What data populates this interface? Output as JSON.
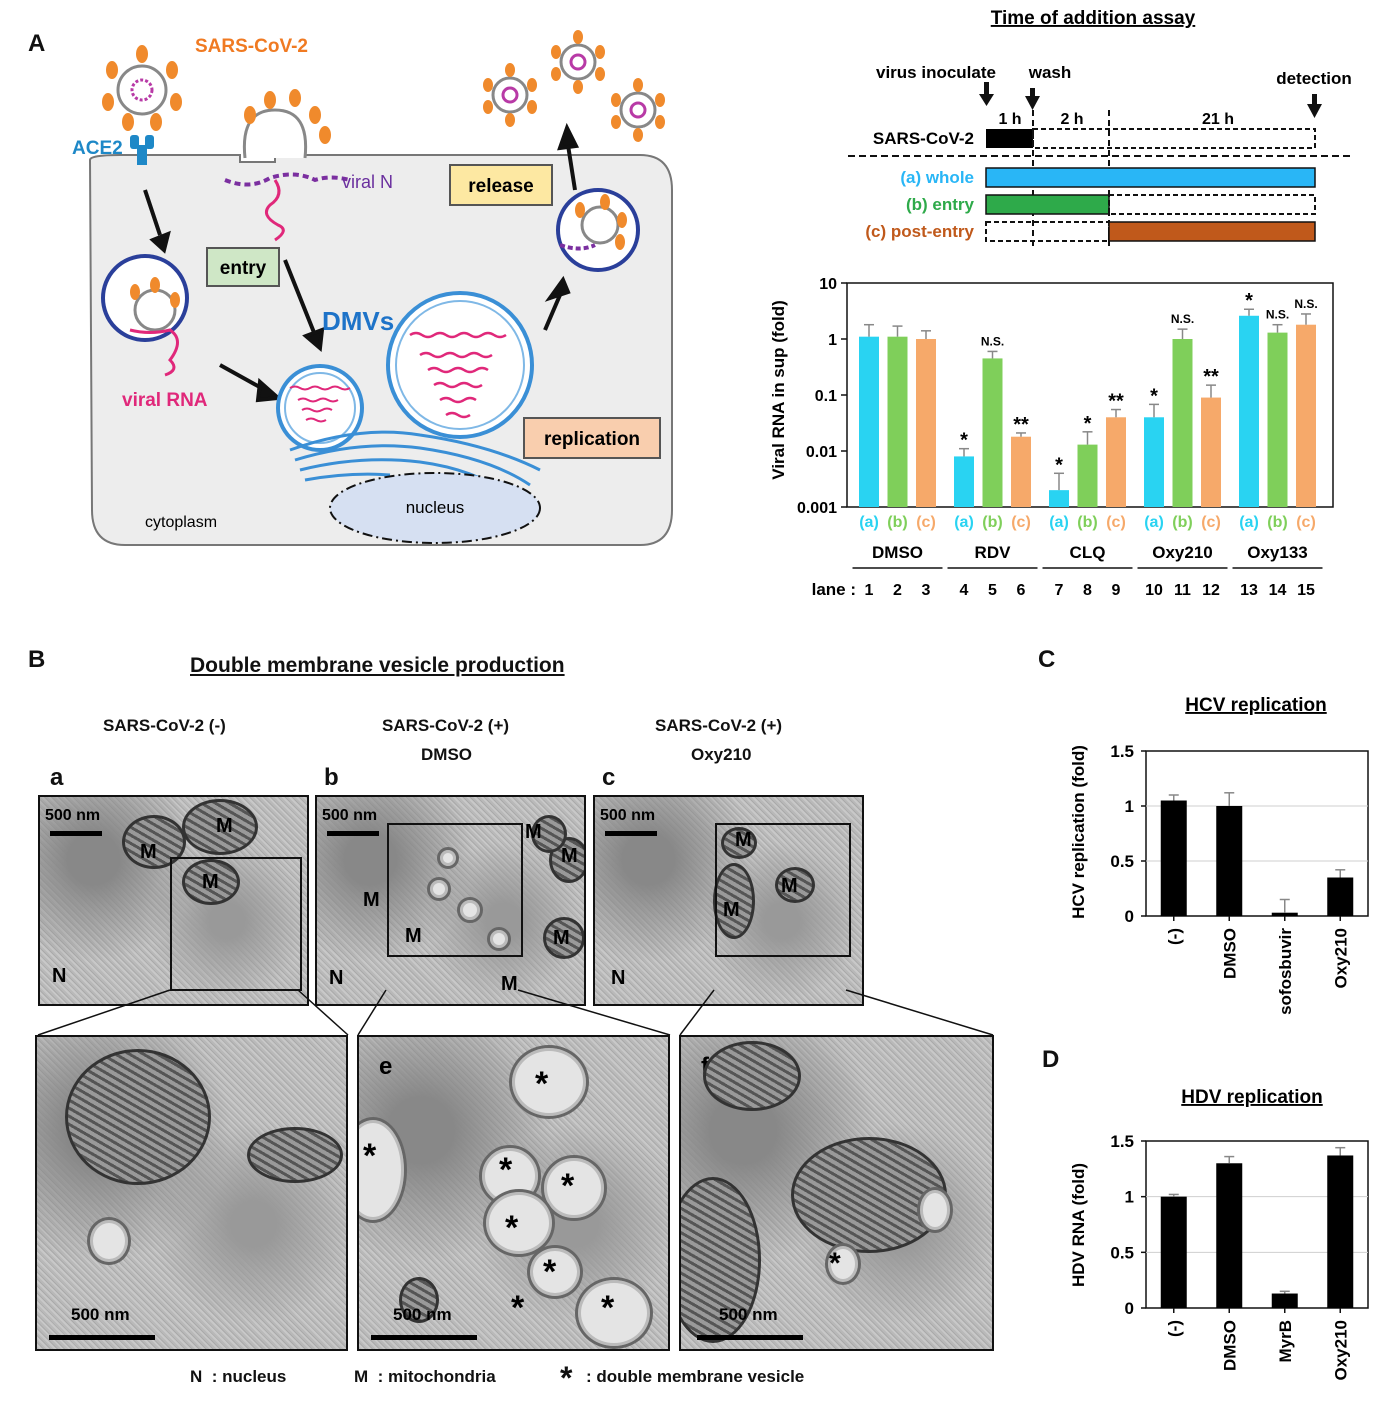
{
  "panelA": {
    "letter": "A",
    "virus_label": "SARS-CoV-2",
    "ace2_label": "ACE2",
    "viral_n_label": "viral N",
    "release_label": "release",
    "entry_label": "entry",
    "dmvs_label": "DMVs",
    "viral_rna_label": "viral RNA",
    "replication_label": "replication",
    "nucleus_label": "nucleus",
    "cytoplasm_label": "cytoplasm"
  },
  "timeline": {
    "title": "Time of addition assay",
    "virus_inoculate": "virus inoculate",
    "wash": "wash",
    "detection": "detection",
    "t1": "1 h",
    "t2": "2 h",
    "t3": "21 h",
    "virus_row": "SARS-CoV-2",
    "rows": [
      {
        "label": "(a) whole",
        "color": "#29b6f6"
      },
      {
        "label": "(b) entry",
        "color": "#2eaa4a"
      },
      {
        "label": "(c) post-entry",
        "color": "#c0591b"
      }
    ]
  },
  "chart_data": [
    {
      "type": "bar",
      "ylabel": "Viral RNA in sup (fold)",
      "yscale": "log",
      "ylim": [
        0.001,
        10
      ],
      "yticks": [
        "10",
        "1",
        "0.1",
        "0.01",
        "0.001"
      ],
      "colors": {
        "a": "#29d3f2",
        "b": "#7fcf5a",
        "c": "#f6a96a"
      },
      "abc_labels": [
        "(a)",
        "(b)",
        "(c)"
      ],
      "groups": [
        "DMSO",
        "RDV",
        "CLQ",
        "Oxy210",
        "Oxy133"
      ],
      "lane_label": "lane :",
      "lanes": [
        "1",
        "2",
        "3",
        "4",
        "5",
        "6",
        "7",
        "8",
        "9",
        "10",
        "11",
        "12",
        "13",
        "14",
        "15"
      ],
      "values": [
        1.1,
        1.1,
        1.0,
        0.008,
        0.45,
        0.018,
        0.002,
        0.013,
        0.04,
        0.04,
        1.0,
        0.09,
        2.6,
        1.3,
        1.8
      ],
      "errors_top": [
        1.8,
        1.7,
        1.4,
        0.011,
        0.6,
        0.021,
        0.004,
        0.022,
        0.055,
        0.068,
        1.5,
        0.15,
        3.4,
        1.8,
        2.8
      ],
      "significance": [
        "",
        "",
        "",
        "*",
        "N.S.",
        "**",
        "*",
        "*",
        "**",
        "*",
        "N.S.",
        "**",
        "*",
        "N.S.",
        "N.S."
      ]
    },
    {
      "type": "bar",
      "title": "HCV replication",
      "ylabel": "HCV replication (fold)",
      "ylim": [
        0,
        1.5
      ],
      "yticks": [
        "1.5",
        "1",
        "0.5",
        "0"
      ],
      "categories": [
        "(-)",
        "DMSO",
        "sofosbuvir",
        "Oxy210"
      ],
      "values": [
        1.05,
        1.0,
        0.03,
        0.35
      ],
      "errors": [
        0.05,
        0.12,
        0.12,
        0.07
      ]
    },
    {
      "type": "bar",
      "title": "HDV replication",
      "ylabel": "HDV RNA (fold)",
      "ylim": [
        0,
        1.5
      ],
      "yticks": [
        "1.5",
        "1",
        "0.5",
        "0"
      ],
      "categories": [
        "(-)",
        "DMSO",
        "MyrB",
        "Oxy210"
      ],
      "values": [
        1.0,
        1.3,
        0.13,
        1.37
      ],
      "errors": [
        0.02,
        0.06,
        0.02,
        0.07
      ]
    }
  ],
  "panelB": {
    "letter": "B",
    "title": "Double membrane vesicle production",
    "col_a": "SARS-CoV-2 (-)",
    "col_b_1": "SARS-CoV-2 (+)",
    "col_b_2": "DMSO",
    "col_c_1": "SARS-CoV-2 (+)",
    "col_c_2": "Oxy210",
    "sub_a": "a",
    "sub_b": "b",
    "sub_c": "c",
    "sub_e": "e",
    "sub_f": "f",
    "scale_label": "500 nm",
    "M": "M",
    "N": "N",
    "star": "*",
    "legend_n": "N  : nucleus",
    "legend_m": "M  : mitochondria",
    "legend_star": "*",
    "legend_star_text": ": double membrane vesicle"
  },
  "panelC": {
    "letter": "C"
  },
  "panelD": {
    "letter": "D"
  }
}
